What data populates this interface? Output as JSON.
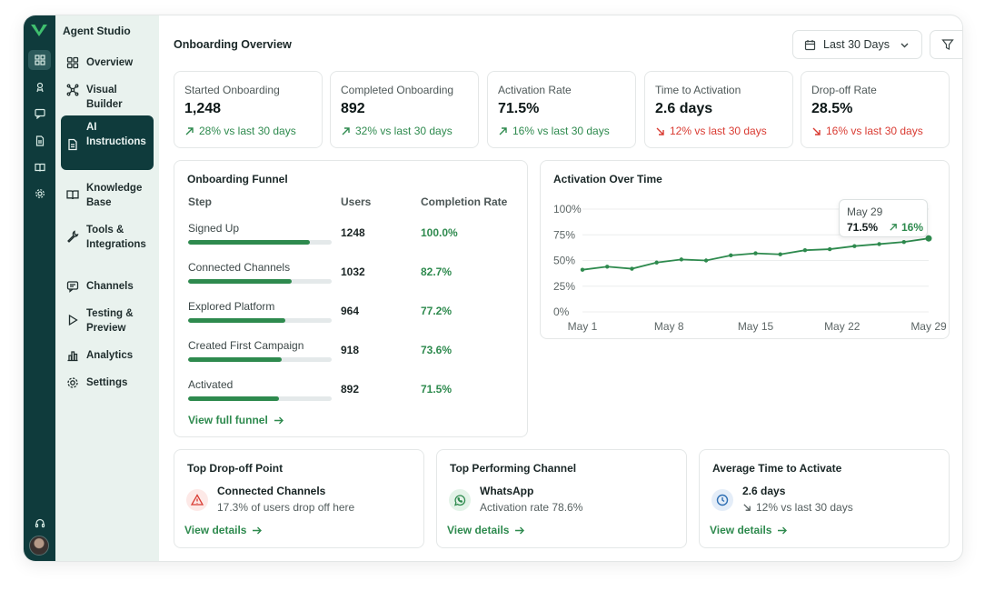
{
  "sidebar": {
    "brand": "Agent Studio",
    "items": [
      {
        "label": "Overview",
        "icon": "grid-icon"
      },
      {
        "label": "Visual Builder",
        "icon": "workflow-icon"
      },
      {
        "label": "AI Instructions",
        "icon": "document-icon"
      },
      {
        "label": "Knowledge Base",
        "icon": "book-icon"
      },
      {
        "label": "Tools & Integrations",
        "icon": "wrench-icon"
      },
      {
        "label": "Channels",
        "icon": "chat-icon"
      },
      {
        "label": "Testing & Preview",
        "icon": "play-icon"
      },
      {
        "label": "Analytics",
        "icon": "bar-chart-icon"
      },
      {
        "label": "Settings",
        "icon": "gear-icon"
      }
    ],
    "active_index": 2
  },
  "header": {
    "title": "Onboarding Overview",
    "date_range": "Last 30 Days"
  },
  "kpis": [
    {
      "label": "Started Onboarding",
      "value": "1,248",
      "change": "28% vs last 30 days",
      "trend": "up"
    },
    {
      "label": "Completed Onboarding",
      "value": "892",
      "change": "32% vs last 30 days",
      "trend": "up"
    },
    {
      "label": "Activation Rate",
      "value": "71.5%",
      "change": "16% vs last 30 days",
      "trend": "up"
    },
    {
      "label": "Time to Activation",
      "value": "2.6 days",
      "change": "12% vs last 30 days",
      "trend": "down"
    },
    {
      "label": "Drop-off Rate",
      "value": "28.5%",
      "change": "16% vs last 30 days",
      "trend": "down"
    }
  ],
  "funnel": {
    "title": "Onboarding Funnel",
    "headers": {
      "step": "Step",
      "users": "Users",
      "rate": "Completion Rate"
    },
    "rows": [
      {
        "step": "Signed Up",
        "users": "1248",
        "rate": "100.0%",
        "fraction": 0.85
      },
      {
        "step": "Connected Channels",
        "users": "1032",
        "rate": "82.7%",
        "fraction": 0.72
      },
      {
        "step": "Explored Platform",
        "users": "964",
        "rate": "77.2%",
        "fraction": 0.68
      },
      {
        "step": "Created First Campaign",
        "users": "918",
        "rate": "73.6%",
        "fraction": 0.65
      },
      {
        "step": "Activated",
        "users": "892",
        "rate": "71.5%",
        "fraction": 0.63
      }
    ],
    "link": "View full funnel"
  },
  "activation": {
    "title": "Activation Over Time",
    "tooltip": {
      "date": "May 29",
      "value": "71.5%",
      "change": "16%"
    }
  },
  "chart_data": {
    "type": "line",
    "title": "Activation Over Time",
    "x_ticks": [
      "May 1",
      "May 8",
      "May 15",
      "May 22",
      "May 29"
    ],
    "y_ticks": [
      "0%",
      "25%",
      "50%",
      "75%",
      "100%"
    ],
    "ylim": [
      0,
      100
    ],
    "x": [
      "May 1",
      "May 3",
      "May 5",
      "May 7",
      "May 9",
      "May 11",
      "May 13",
      "May 15",
      "May 17",
      "May 19",
      "May 21",
      "May 23",
      "May 25",
      "May 27",
      "May 29"
    ],
    "values": [
      41,
      44,
      42,
      48,
      51,
      50,
      55,
      57,
      56,
      60,
      61,
      64,
      66,
      68,
      71.5
    ],
    "color": "#2e8a4e",
    "grid": true,
    "highlight_index": 14
  },
  "bottom_cards": [
    {
      "title": "Top Drop-off Point",
      "heading": "Connected Channels",
      "sub": "17.3% of users drop off here",
      "icon": "warning-icon",
      "link": "View details"
    },
    {
      "title": "Top Performing Channel",
      "heading": "WhatsApp",
      "sub": "Activation rate 78.6%",
      "icon": "whatsapp-icon",
      "link": "View details"
    },
    {
      "title": "Average Time to Activate",
      "heading": "2.6 days",
      "sub": "12% vs last 30 days",
      "icon": "clock-icon",
      "link": "View details"
    }
  ],
  "colors": {
    "rail": "#0f3b3c",
    "sidebar": "#e9f2ee",
    "accent": "#2e8a4e",
    "negative": "#d93b32"
  }
}
